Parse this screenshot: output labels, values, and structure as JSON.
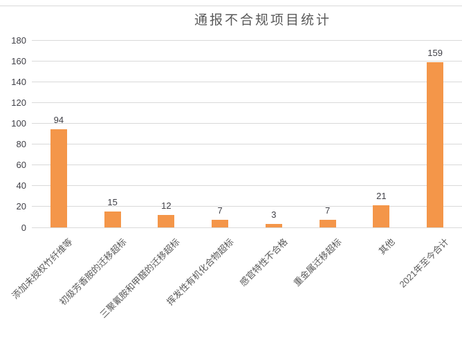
{
  "chart_data": {
    "type": "bar",
    "title": "通报不合规项目统计",
    "categories": [
      "添加未授权竹纤维等",
      "初级芳香胺的迁移超标",
      "三聚氰胺和甲醛的迁移超标",
      "挥发性有机化合物超标",
      "感官特性不合格",
      "重金属迁移超标",
      "其他",
      "2021年至今合计"
    ],
    "values": [
      94,
      15,
      12,
      7,
      3,
      7,
      21,
      159
    ],
    "y_ticks": [
      0,
      20,
      40,
      60,
      80,
      100,
      120,
      140,
      160,
      180
    ],
    "ylim": [
      0,
      180
    ],
    "xlabel": "",
    "ylabel": "",
    "grid": "horizontal",
    "legend": "none",
    "data_labels": "above-bars"
  },
  "style": {
    "bar_color": "#F49649",
    "grid_color": "#D9D9D9",
    "top_rule_color": "#D9D9D9",
    "title_color": "#595959",
    "value_label_color": "#3F3F46",
    "y_label_color": "#3F3F46",
    "category_label_color": "#595959"
  }
}
